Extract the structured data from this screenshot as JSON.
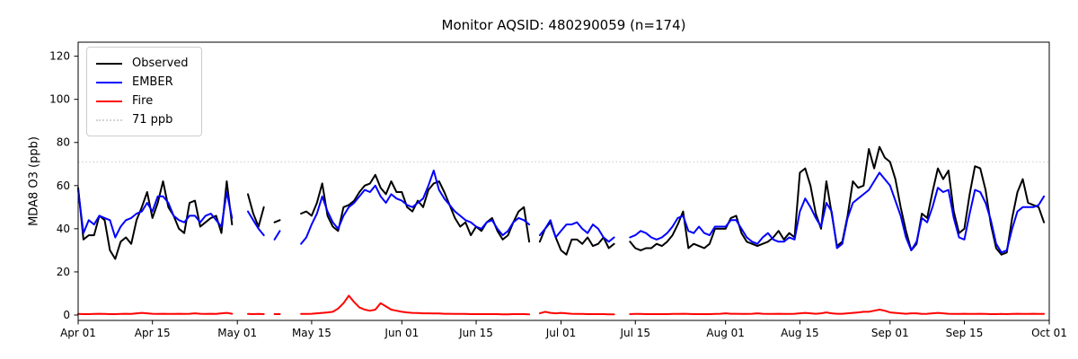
{
  "chart_data": {
    "type": "line",
    "title": "Monitor AQSID: 480290059 (n=174)",
    "ylabel": "MDA8 O3 (ppb)",
    "x_total_days": 183,
    "x_tick_labels": [
      "Apr 01",
      "Apr 15",
      "May 01",
      "May 15",
      "Jun 01",
      "Jun 15",
      "Jul 01",
      "Jul 15",
      "Aug 01",
      "Aug 15",
      "Sep 01",
      "Sep 15",
      "Oct 01"
    ],
    "x_tick_days": [
      0,
      14,
      30,
      44,
      61,
      75,
      91,
      105,
      122,
      136,
      153,
      167,
      183
    ],
    "y_ticks": [
      0,
      20,
      40,
      60,
      80,
      100,
      120
    ],
    "ylim": [
      -2.5,
      126.5
    ],
    "grid": false,
    "threshold": {
      "label": "71 ppb",
      "value": 71,
      "color": "#d3d3d3",
      "dash": "dotted"
    },
    "legend_position": "upper-left",
    "legend_entries": [
      {
        "label": "Observed",
        "color": "#000000",
        "dash": "solid"
      },
      {
        "label": "EMBER",
        "color": "#0000ff",
        "dash": "solid"
      },
      {
        "label": "Fire",
        "color": "#ff0000",
        "dash": "solid"
      },
      {
        "label": "71 ppb",
        "color": "#d3d3d3",
        "dash": "dotted"
      }
    ],
    "series": [
      {
        "name": "Observed",
        "color": "#000000",
        "values": [
          59,
          35,
          37,
          37,
          46,
          44,
          30,
          26,
          34,
          36,
          33,
          44,
          50,
          57,
          45,
          52,
          62,
          50,
          46,
          40,
          38,
          52,
          53,
          41,
          43,
          45,
          46,
          38,
          62,
          42,
          null,
          null,
          56,
          47,
          41,
          50,
          null,
          43,
          44,
          null,
          null,
          null,
          47,
          48,
          46,
          52,
          61,
          46,
          41,
          39,
          50,
          51,
          53,
          57,
          60,
          61,
          65,
          59,
          56,
          62,
          57,
          57,
          50,
          48,
          53,
          50,
          58,
          61,
          62,
          57,
          51,
          45,
          41,
          43,
          37,
          41,
          39,
          43,
          45,
          39,
          35,
          37,
          43,
          48,
          50,
          34,
          null,
          34,
          40,
          43,
          36,
          30,
          28,
          35,
          35,
          33,
          36,
          32,
          33,
          36,
          31,
          33,
          null,
          null,
          34,
          31,
          30,
          31,
          31,
          33,
          32,
          34,
          37,
          42,
          48,
          31,
          33,
          32,
          31,
          33,
          40,
          40,
          40,
          45,
          46,
          38,
          34,
          33,
          32,
          33,
          34,
          36,
          39,
          35,
          38,
          36,
          66,
          68,
          60,
          47,
          40,
          62,
          47,
          32,
          34,
          46,
          62,
          59,
          60,
          77,
          68,
          78,
          73,
          71,
          63,
          50,
          39,
          30,
          33,
          47,
          45,
          57,
          68,
          63,
          67,
          48,
          38,
          40,
          56,
          69,
          68,
          58,
          42,
          31,
          28,
          29,
          45,
          57,
          63,
          52,
          51,
          50,
          43
        ]
      },
      {
        "name": "EMBER",
        "color": "#0000ff",
        "values": [
          58,
          38,
          44,
          42,
          46,
          45,
          44,
          36,
          41,
          44,
          45,
          47,
          48,
          52,
          48,
          55,
          55,
          52,
          46,
          44,
          43,
          46,
          46,
          43,
          46,
          47,
          44,
          41,
          57,
          45,
          null,
          null,
          48,
          44,
          40,
          37,
          null,
          35,
          39,
          null,
          null,
          null,
          33,
          36,
          42,
          47,
          55,
          48,
          43,
          40,
          46,
          50,
          52,
          55,
          58,
          57,
          60,
          55,
          52,
          56,
          54,
          53,
          51,
          50,
          52,
          54,
          60,
          67,
          58,
          54,
          51,
          48,
          46,
          44,
          43,
          41,
          40,
          43,
          44,
          40,
          37,
          39,
          43,
          45,
          44,
          42,
          null,
          37,
          40,
          44,
          36,
          39,
          42,
          42,
          43,
          40,
          38,
          42,
          40,
          36,
          34,
          36,
          null,
          null,
          36,
          37,
          39,
          38,
          36,
          35,
          36,
          38,
          41,
          45,
          46,
          39,
          38,
          41,
          38,
          37,
          41,
          41,
          41,
          44,
          44,
          40,
          36,
          34,
          33,
          36,
          38,
          35,
          34,
          34,
          36,
          35,
          48,
          54,
          50,
          45,
          41,
          52,
          48,
          31,
          33,
          45,
          52,
          54,
          56,
          58,
          62,
          66,
          63,
          60,
          53,
          46,
          36,
          30,
          34,
          45,
          43,
          50,
          59,
          57,
          58,
          45,
          36,
          35,
          47,
          58,
          57,
          52,
          44,
          33,
          29,
          30,
          40,
          48,
          50,
          50,
          50,
          51,
          55
        ]
      },
      {
        "name": "Fire",
        "color": "#ff0000",
        "values": [
          0.5,
          0.4,
          0.4,
          0.5,
          0.6,
          0.5,
          0.4,
          0.4,
          0.5,
          0.6,
          0.5,
          0.8,
          1.0,
          0.8,
          0.6,
          0.5,
          0.6,
          0.5,
          0.5,
          0.6,
          0.5,
          0.6,
          0.8,
          0.6,
          0.5,
          0.6,
          0.5,
          0.8,
          1.0,
          0.6,
          null,
          null,
          0.5,
          0.4,
          0.5,
          0.4,
          null,
          0.4,
          0.4,
          null,
          null,
          null,
          0.5,
          0.5,
          0.6,
          0.8,
          1.0,
          1.2,
          1.5,
          3.0,
          5.5,
          9.0,
          6.0,
          3.5,
          2.5,
          2.0,
          2.5,
          5.5,
          4.0,
          2.5,
          2.0,
          1.5,
          1.2,
          1.0,
          0.9,
          0.8,
          0.8,
          0.7,
          0.7,
          0.6,
          0.6,
          0.5,
          0.5,
          0.5,
          0.4,
          0.4,
          0.4,
          0.4,
          0.4,
          0.4,
          0.3,
          0.3,
          0.4,
          0.4,
          0.4,
          0.3,
          null,
          0.8,
          1.5,
          1.0,
          0.8,
          1.0,
          0.8,
          0.6,
          0.5,
          0.5,
          0.4,
          0.4,
          0.4,
          0.4,
          0.3,
          0.3,
          null,
          null,
          0.4,
          0.5,
          0.5,
          0.4,
          0.4,
          0.4,
          0.4,
          0.4,
          0.5,
          0.5,
          0.6,
          0.5,
          0.4,
          0.4,
          0.4,
          0.4,
          0.5,
          0.6,
          0.8,
          0.6,
          0.6,
          0.5,
          0.5,
          0.6,
          0.8,
          0.6,
          0.5,
          0.5,
          0.6,
          0.5,
          0.5,
          0.6,
          0.8,
          1.0,
          0.8,
          0.6,
          0.8,
          1.2,
          0.8,
          0.6,
          0.6,
          0.8,
          1.0,
          1.2,
          1.5,
          1.5,
          2.0,
          2.5,
          2.0,
          1.2,
          1.0,
          0.8,
          0.6,
          0.8,
          0.8,
          0.5,
          0.6,
          0.8,
          1.0,
          0.8,
          0.6,
          0.5,
          0.5,
          0.6,
          0.5,
          0.5,
          0.6,
          0.5,
          0.4,
          0.4,
          0.5,
          0.4,
          0.5,
          0.6,
          0.5,
          0.5,
          0.6,
          0.5,
          0.5
        ]
      }
    ]
  }
}
